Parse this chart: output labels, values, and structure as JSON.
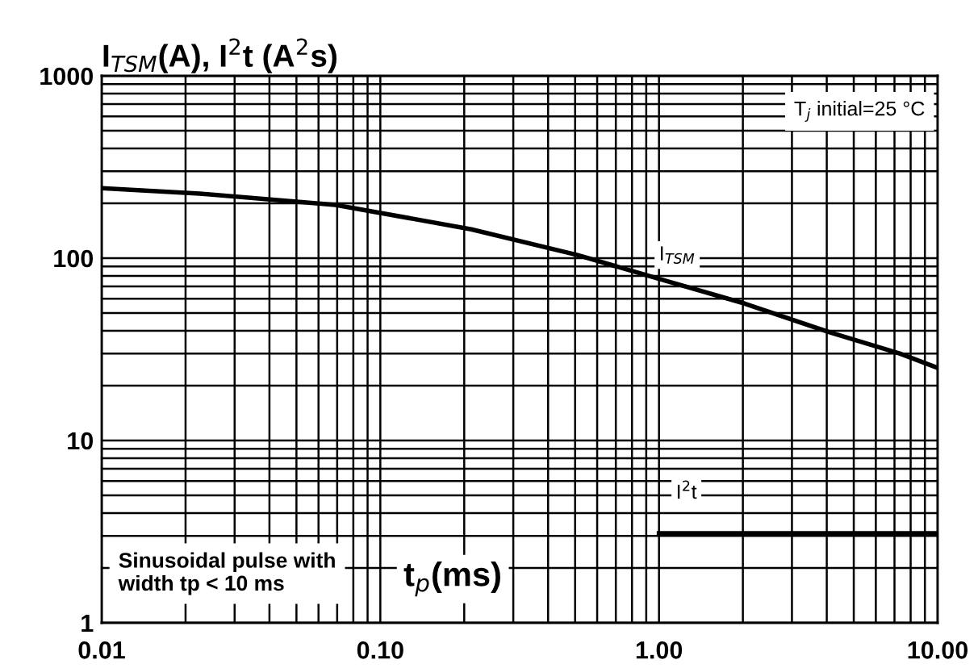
{
  "chart_data": {
    "type": "line",
    "title": "I$_{TSM}$(A), I$^{2}$t (A$^{2}$s)",
    "xlabel": "t$_{p}$(ms)",
    "annotations": [
      "T$_{j}$ initial=25 °C",
      "Sinusoidal pulse with\nwidth tp < 10 ms"
    ],
    "series": [
      {
        "name": "I$_{TSM}$",
        "color": "#000000",
        "x": [
          0.01,
          0.0225,
          0.069,
          0.212,
          0.51,
          1.0,
          2.02,
          4.14,
          7.3,
          10
        ],
        "values": [
          242,
          226,
          196,
          144,
          104,
          77,
          56.5,
          39,
          30,
          25
        ]
      },
      {
        "name": "I$^{2}$t",
        "color": "#000000",
        "x": [
          1.0,
          10
        ],
        "values": [
          3.1,
          3.1
        ]
      }
    ],
    "log": "xy",
    "xlim": [
      0.01,
      10
    ],
    "ylim": [
      1,
      1000
    ],
    "xticks": [
      {
        "value": 0.01,
        "label": "0.01"
      },
      {
        "value": 0.1,
        "label": "0.10"
      },
      {
        "value": 1,
        "label": "1.00"
      },
      {
        "value": 10,
        "label": "10.00"
      }
    ],
    "yticks": [
      1,
      10,
      100,
      1000
    ],
    "grid": true,
    "legend": false
  }
}
